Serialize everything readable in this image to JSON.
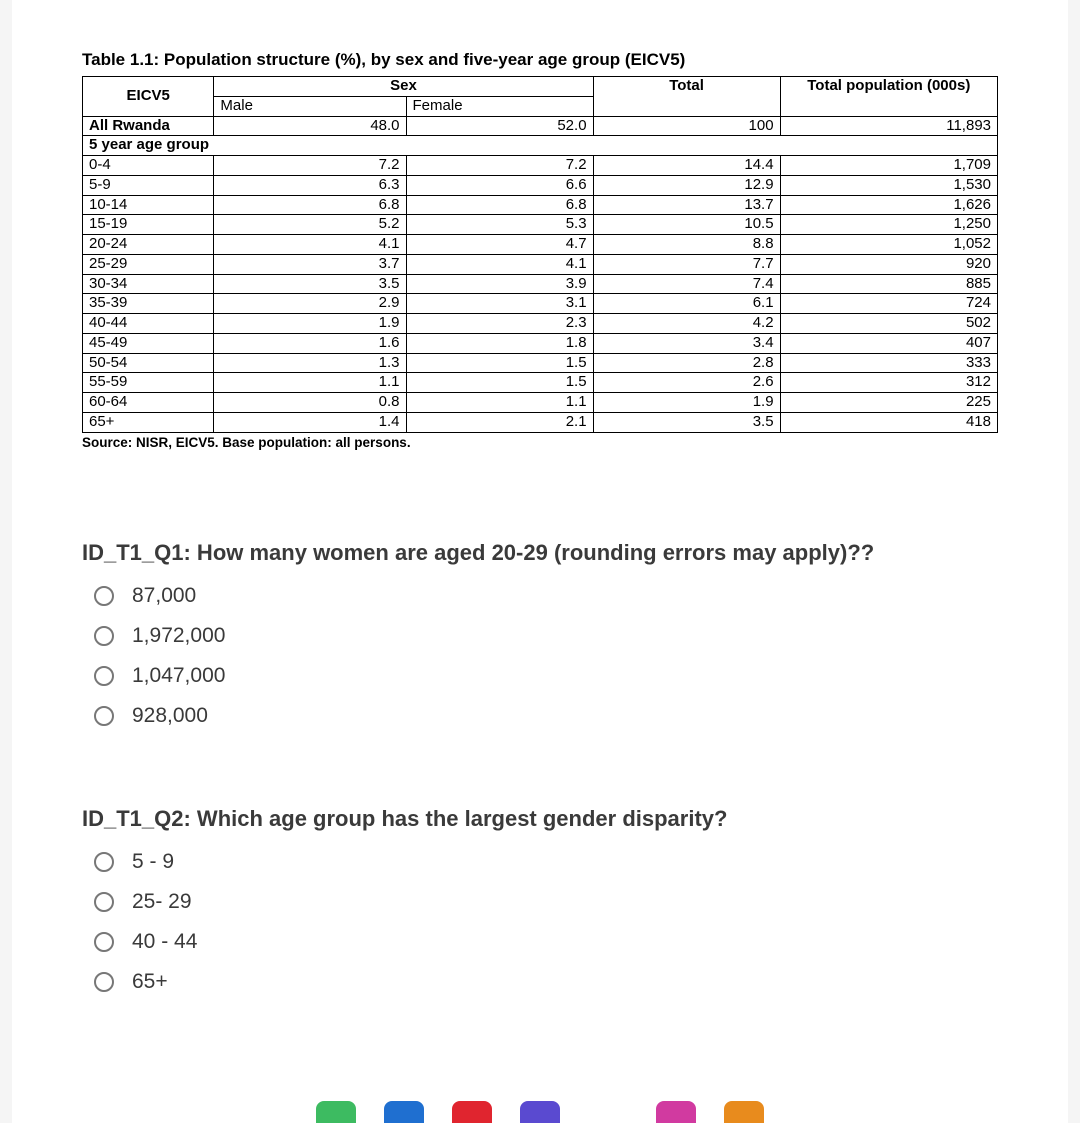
{
  "table": {
    "title": "Table 1.1: Population structure (%), by sex and five-year age group (EICV5)",
    "corner_label": "EICV5",
    "sex_header": "Sex",
    "male_header": "Male",
    "female_header": "Female",
    "total_header": "Total",
    "pop_header": "Total population (000s)",
    "all_row_label": "All Rwanda",
    "all_male": "48.0",
    "all_female": "52.0",
    "all_total": "100",
    "all_pop": "11,893",
    "group_header": "5 year age group",
    "rows": [
      {
        "label": "0-4",
        "male": "7.2",
        "female": "7.2",
        "total": "14.4",
        "pop": "1,709"
      },
      {
        "label": "5-9",
        "male": "6.3",
        "female": "6.6",
        "total": "12.9",
        "pop": "1,530"
      },
      {
        "label": "10-14",
        "male": "6.8",
        "female": "6.8",
        "total": "13.7",
        "pop": "1,626"
      },
      {
        "label": "15-19",
        "male": "5.2",
        "female": "5.3",
        "total": "10.5",
        "pop": "1,250"
      },
      {
        "label": "20-24",
        "male": "4.1",
        "female": "4.7",
        "total": "8.8",
        "pop": "1,052"
      },
      {
        "label": "25-29",
        "male": "3.7",
        "female": "4.1",
        "total": "7.7",
        "pop": "920"
      },
      {
        "label": "30-34",
        "male": "3.5",
        "female": "3.9",
        "total": "7.4",
        "pop": "885"
      },
      {
        "label": "35-39",
        "male": "2.9",
        "female": "3.1",
        "total": "6.1",
        "pop": "724"
      },
      {
        "label": "40-44",
        "male": "1.9",
        "female": "2.3",
        "total": "4.2",
        "pop": "502"
      },
      {
        "label": "45-49",
        "male": "1.6",
        "female": "1.8",
        "total": "3.4",
        "pop": "407"
      },
      {
        "label": "50-54",
        "male": "1.3",
        "female": "1.5",
        "total": "2.8",
        "pop": "333"
      },
      {
        "label": "55-59",
        "male": "1.1",
        "female": "1.5",
        "total": "2.6",
        "pop": "312"
      },
      {
        "label": "60-64",
        "male": "0.8",
        "female": "1.1",
        "total": "1.9",
        "pop": "225"
      },
      {
        "label": "65+",
        "male": "1.4",
        "female": "2.1",
        "total": "3.5",
        "pop": "418"
      }
    ],
    "source": "Source: NISR, EICV5. Base population: all persons."
  },
  "q1": {
    "text": "ID_T1_Q1: How many women are aged 20-29 (rounding errors may apply)??",
    "options": [
      "87,000",
      "1,972,000",
      "1,047,000",
      "928,000"
    ]
  },
  "q2": {
    "text": "ID_T1_Q2: Which age group has the largest gender disparity?",
    "options": [
      "5 - 9",
      "25- 29",
      "40 - 44",
      "65+"
    ]
  },
  "taskbar_colors": [
    "#3dbb61",
    "#1f6fd0",
    "#e0252f",
    "#5a4ad0",
    "#ffffff",
    "#d13aa0",
    "#e88b1d"
  ]
}
